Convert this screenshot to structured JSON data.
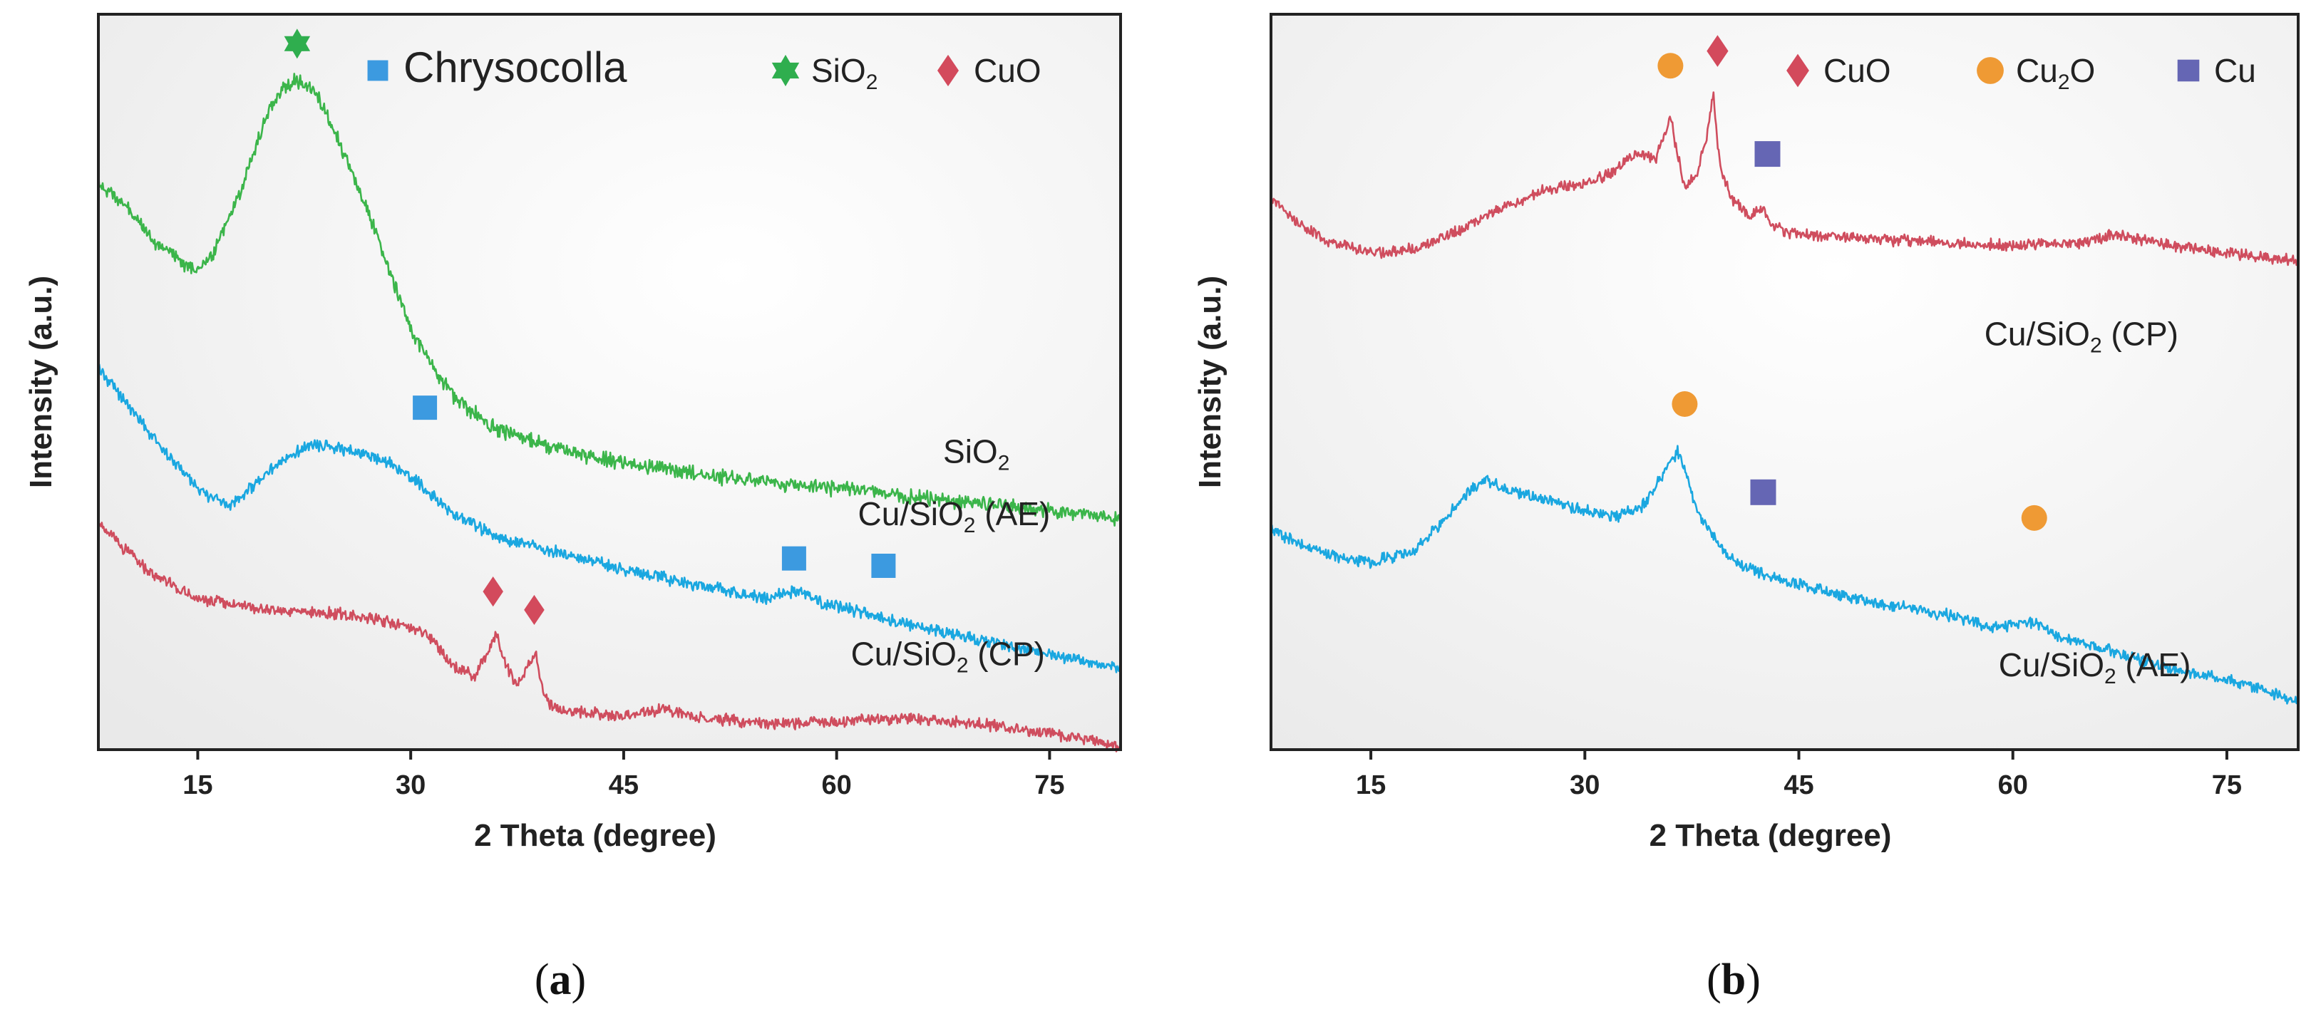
{
  "chart_data": [
    {
      "type": "line",
      "panel": "a",
      "caption": {
        "open": "(",
        "letter": "a",
        "close": ")"
      },
      "xlabel": "2 Theta (degree)",
      "ylabel": "Intensity (a.u.)",
      "xlim": [
        8,
        80
      ],
      "ylim": [
        0,
        100
      ],
      "xticks": [
        15,
        30,
        45,
        60,
        75
      ],
      "legend": {
        "position": "top-right",
        "entries": [
          {
            "name": "Chrysocolla",
            "marker": "square",
            "color": "#3c9ae0"
          },
          {
            "base": "SiO",
            "sub": "2",
            "marker": "star",
            "color": "#2fae4e"
          },
          {
            "name": "CuO",
            "marker": "diamond",
            "color": "#d34a5c"
          }
        ]
      },
      "series": [
        {
          "name": "SiO2",
          "label": {
            "base": "SiO",
            "sub": "2",
            "tail": ""
          },
          "color": "#3bb54a",
          "x": [
            8,
            10,
            12,
            14,
            15,
            16,
            18,
            20,
            21,
            22,
            23,
            24,
            26,
            28,
            30,
            33,
            36,
            40,
            45,
            50,
            55,
            60,
            65,
            70,
            75,
            80
          ],
          "y": [
            77,
            74,
            69,
            66,
            65.5,
            67,
            76,
            87,
            90,
            91,
            90,
            87,
            78,
            68,
            57,
            48,
            43.5,
            41,
            39,
            37.5,
            36.5,
            35.5,
            34.5,
            33.5,
            32.5,
            31.5
          ]
        },
        {
          "name": "Cu/SiO2 (AE)",
          "label": {
            "base": "Cu/SiO",
            "sub": "2",
            "tail": " (AE)"
          },
          "color": "#1aa7e0",
          "x": [
            8,
            10,
            12,
            15,
            17,
            19,
            21,
            23,
            25,
            27,
            29,
            31,
            33,
            36,
            40,
            45,
            50,
            55,
            56.5,
            57.5,
            59,
            62,
            65,
            70,
            75,
            80
          ],
          "y": [
            52,
            47,
            42,
            35.5,
            33,
            36,
            39.5,
            41.5,
            41,
            40,
            38.5,
            35.5,
            32,
            29,
            27,
            24.5,
            22.5,
            20.5,
            21.5,
            21.5,
            20,
            18.5,
            17,
            15,
            13,
            11
          ]
        },
        {
          "name": "Cu/SiO2 (CP)",
          "label": {
            "base": "Cu/SiO",
            "sub": "2",
            "tail": " (CP)"
          },
          "color": "#cf4d5e",
          "x": [
            8,
            10,
            12,
            15,
            20,
            25,
            28,
            31,
            33,
            34.5,
            35.5,
            36,
            36.5,
            37.5,
            38.2,
            38.8,
            39.3,
            40,
            45,
            48,
            50,
            55,
            60,
            65,
            70,
            75,
            80
          ],
          "y": [
            31,
            27,
            23.5,
            20.5,
            19,
            18.5,
            17.5,
            16,
            11.5,
            10,
            13.5,
            16,
            12.5,
            8.5,
            11.5,
            13,
            8,
            5.5,
            4.5,
            5.5,
            4.5,
            3.5,
            3.8,
            4.2,
            3.5,
            2.2,
            0.5
          ]
        }
      ],
      "markers": [
        {
          "type": "star",
          "color": "#2fae4e",
          "x": 22,
          "y": 96
        },
        {
          "type": "square",
          "color": "#3c9ae0",
          "x": 31,
          "y": 46.5
        },
        {
          "type": "square",
          "color": "#3c9ae0",
          "x": 57,
          "y": 26
        },
        {
          "type": "square",
          "color": "#3c9ae0",
          "x": 63.3,
          "y": 25
        },
        {
          "type": "diamond",
          "color": "#d34a5c",
          "x": 35.8,
          "y": 21.5
        },
        {
          "type": "diamond",
          "color": "#d34a5c",
          "x": 38.7,
          "y": 19
        }
      ],
      "labels": [
        {
          "series": 0,
          "x": 67.5,
          "y": 39
        },
        {
          "series": 1,
          "x": 61.5,
          "y": 30.5
        },
        {
          "series": 2,
          "x": 61,
          "y": 11.5
        }
      ]
    },
    {
      "type": "line",
      "panel": "b",
      "caption": {
        "open": "(",
        "letter": "b",
        "close": ")"
      },
      "xlabel": "2 Theta (degree)",
      "ylabel": "Intensity (a.u.)",
      "xlim": [
        8,
        80
      ],
      "ylim": [
        0,
        100
      ],
      "xticks": [
        15,
        30,
        45,
        60,
        75
      ],
      "legend": {
        "position": "top-right",
        "entries": [
          {
            "name": "CuO",
            "marker": "diamond",
            "color": "#d34a5c"
          },
          {
            "base": "Cu",
            "sub": "2",
            "tail": "O",
            "marker": "circle",
            "color": "#ef9a34"
          },
          {
            "name": "Cu",
            "marker": "square",
            "color": "#6566b4"
          }
        ]
      },
      "series": [
        {
          "name": "Cu/SiO2 (CP)",
          "label": {
            "base": "Cu/SiO",
            "sub": "2",
            "tail": " (CP)"
          },
          "color": "#cf4d5e",
          "x": [
            8,
            10,
            12,
            15,
            18,
            21,
            24,
            27,
            30,
            32,
            33,
            34,
            35,
            35.5,
            36,
            36.5,
            37,
            37.8,
            38.5,
            39,
            39.5,
            40.3,
            41.5,
            42.5,
            43.2,
            44,
            46,
            50,
            55,
            60,
            65,
            67,
            70,
            75,
            80
          ],
          "y": [
            75,
            71.5,
            69,
            67.5,
            68,
            70.5,
            73.5,
            76,
            77,
            78.5,
            80.5,
            81,
            80.5,
            83,
            86,
            81,
            76.5,
            78,
            83,
            89,
            79,
            75,
            72.5,
            73.5,
            71,
            70.5,
            70,
            69.5,
            69,
            68.5,
            69,
            70,
            69,
            67.5,
            66.5
          ]
        },
        {
          "name": "Cu/SiO2 (AE)",
          "label": {
            "base": "Cu/SiO",
            "sub": "2",
            "tail": " (AE)"
          },
          "color": "#1aa7e0",
          "x": [
            8,
            10,
            12,
            15,
            18,
            20,
            22,
            23,
            24,
            26,
            28,
            30,
            32,
            34,
            35.5,
            36.5,
            37,
            38,
            39.5,
            41,
            42.5,
            44,
            47,
            50,
            55,
            59,
            61.5,
            63,
            66,
            70,
            75,
            80
          ],
          "y": [
            30,
            28,
            26.5,
            25.5,
            27,
            31,
            35.5,
            36.5,
            36,
            34.5,
            33.5,
            32.5,
            31.5,
            33,
            37.5,
            40.5,
            38,
            32,
            27.5,
            25,
            24,
            23,
            21.5,
            20,
            18.5,
            16.5,
            17.5,
            15.5,
            14,
            11.5,
            9.5,
            6.5
          ]
        }
      ],
      "markers": [
        {
          "type": "circle",
          "color": "#ef9a34",
          "x": 36,
          "y": 93
        },
        {
          "type": "diamond",
          "color": "#d34a5c",
          "x": 39.3,
          "y": 95
        },
        {
          "type": "square",
          "color": "#6566b4",
          "x": 42.8,
          "y": 81
        },
        {
          "type": "circle",
          "color": "#ef9a34",
          "x": 37,
          "y": 47
        },
        {
          "type": "square",
          "color": "#6566b4",
          "x": 42.5,
          "y": 35
        },
        {
          "type": "circle",
          "color": "#ef9a34",
          "x": 61.5,
          "y": 31.5
        }
      ],
      "labels": [
        {
          "series": 0,
          "x": 58,
          "y": 55
        },
        {
          "series": 1,
          "x": 59,
          "y": 10
        }
      ]
    }
  ]
}
